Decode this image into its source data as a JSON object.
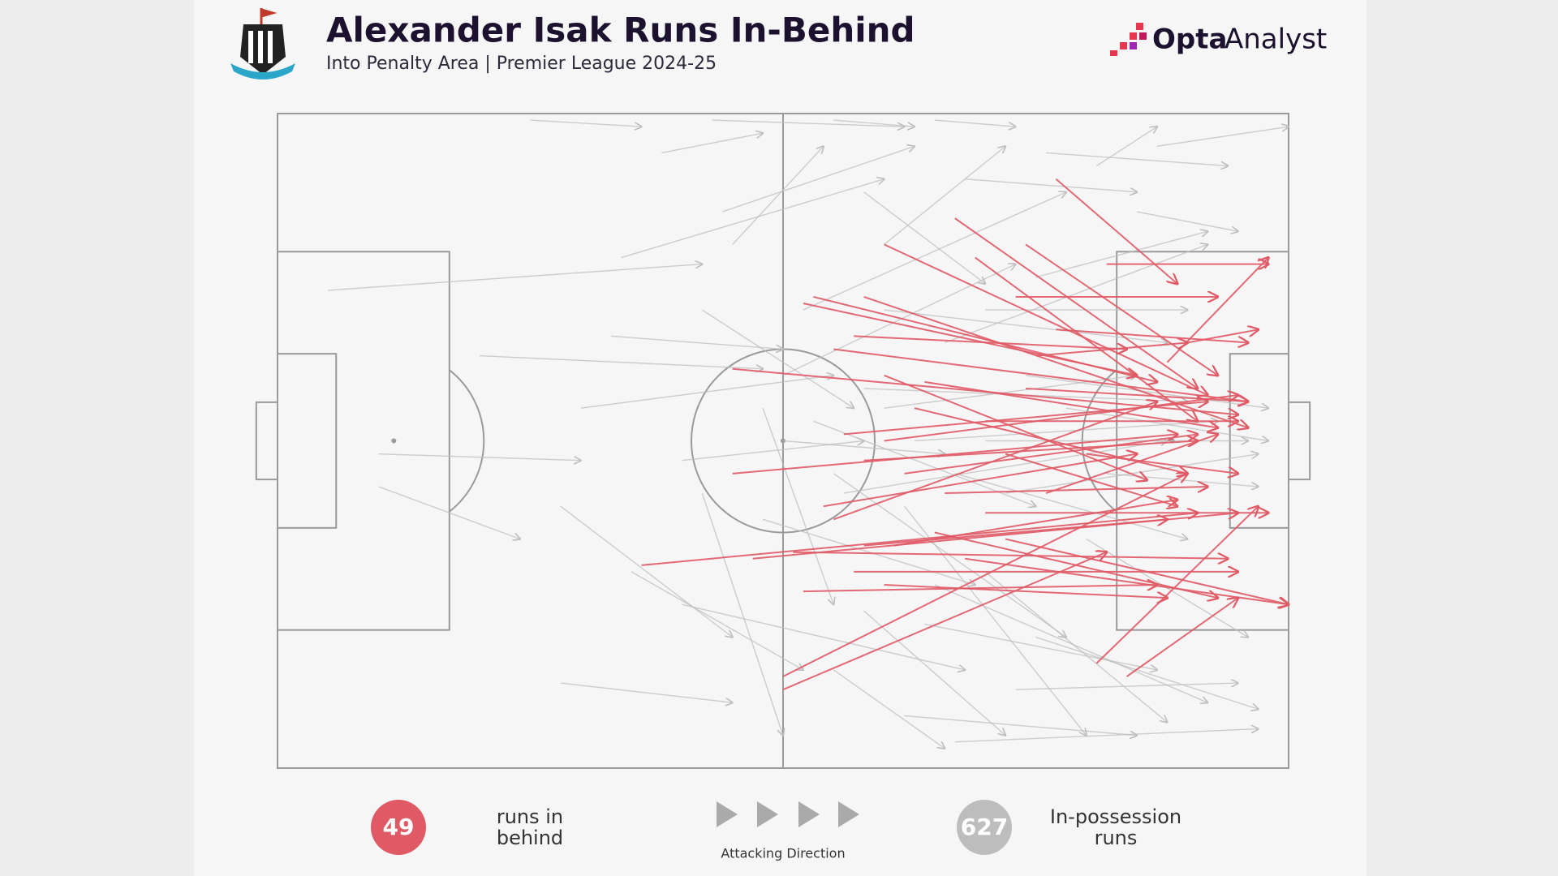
{
  "title": "Alexander Isak Runs In-Behind",
  "subtitle": "Into Penalty Area | Premier League 2024-25",
  "brand_bold": "Opta",
  "brand_light": "Analyst",
  "chart_data": {
    "type": "pitch-arrows",
    "xlim": [
      0,
      100
    ],
    "ylim": [
      0,
      100
    ],
    "direction_label": "Attacking Direction",
    "series": [
      {
        "name": "In-possession runs",
        "count": 627,
        "color": "#bdbdbd",
        "runs": [
          [
            25,
            1,
            36,
            2
          ],
          [
            43,
            1,
            62,
            2
          ],
          [
            55,
            1,
            63,
            2
          ],
          [
            65,
            1,
            73,
            2
          ],
          [
            81,
            8,
            87,
            2
          ],
          [
            87,
            5,
            100,
            2
          ],
          [
            33,
            34,
            50,
            36
          ],
          [
            5,
            27,
            42,
            23
          ],
          [
            10,
            57,
            24,
            65
          ],
          [
            10,
            52,
            30,
            53
          ],
          [
            20,
            37,
            48,
            39
          ],
          [
            30,
            45,
            55,
            40
          ],
          [
            34,
            22,
            60,
            10
          ],
          [
            40,
            53,
            58,
            50
          ],
          [
            28,
            60,
            45,
            80
          ],
          [
            35,
            70,
            52,
            85
          ],
          [
            42,
            58,
            50,
            95
          ],
          [
            48,
            45,
            55,
            75
          ],
          [
            50,
            40,
            73,
            23
          ],
          [
            52,
            30,
            78,
            12
          ],
          [
            60,
            20,
            72,
            5
          ],
          [
            62,
            60,
            80,
            95
          ],
          [
            70,
            70,
            88,
            93
          ],
          [
            75,
            80,
            97,
            91
          ],
          [
            62,
            92,
            85,
            95
          ],
          [
            67,
            96,
            97,
            94
          ],
          [
            28,
            87,
            45,
            90
          ],
          [
            40,
            75,
            68,
            85
          ],
          [
            55,
            55,
            78,
            80
          ],
          [
            60,
            45,
            85,
            40
          ],
          [
            66,
            35,
            92,
            20
          ],
          [
            70,
            50,
            96,
            50
          ],
          [
            72,
            58,
            97,
            52
          ],
          [
            63,
            50,
            93,
            47
          ],
          [
            58,
            42,
            90,
            44
          ],
          [
            56,
            58,
            88,
            50
          ],
          [
            65,
            72,
            92,
            90
          ],
          [
            80,
            65,
            96,
            80
          ],
          [
            75,
            25,
            92,
            18
          ],
          [
            68,
            10,
            85,
            12
          ],
          [
            58,
            12,
            70,
            26
          ],
          [
            45,
            20,
            54,
            5
          ],
          [
            42,
            30,
            57,
            45
          ],
          [
            50,
            50,
            66,
            52
          ],
          [
            74,
            40,
            98,
            45
          ],
          [
            78,
            45,
            98,
            50
          ],
          [
            82,
            55,
            97,
            57
          ],
          [
            70,
            30,
            90,
            30
          ],
          [
            60,
            30,
            88,
            35
          ],
          [
            64,
            78,
            87,
            85
          ],
          [
            55,
            85,
            66,
            97
          ],
          [
            44,
            15,
            63,
            5
          ],
          [
            38,
            6,
            48,
            3
          ],
          [
            76,
            6,
            94,
            8
          ],
          [
            85,
            15,
            95,
            18
          ],
          [
            73,
            88,
            95,
            87
          ],
          [
            58,
            76,
            72,
            95
          ],
          [
            48,
            62,
            69,
            72
          ],
          [
            53,
            47,
            75,
            60
          ],
          [
            67,
            55,
            90,
            65
          ]
        ]
      },
      {
        "name": "runs in behind",
        "count": 49,
        "color": "#e05a66",
        "runs": [
          [
            77,
            10,
            89,
            26
          ],
          [
            67,
            16,
            91,
            42
          ],
          [
            60,
            20,
            92,
            43
          ],
          [
            74,
            20,
            93,
            40
          ],
          [
            58,
            28,
            96,
            48
          ],
          [
            52,
            29,
            85,
            40
          ],
          [
            73,
            28,
            93,
            28
          ],
          [
            55,
            36,
            96,
            44
          ],
          [
            45,
            39,
            95,
            46
          ],
          [
            57,
            34,
            84,
            36
          ],
          [
            53,
            28,
            87,
            41
          ],
          [
            69,
            22,
            91,
            47
          ],
          [
            77,
            33,
            96,
            35
          ],
          [
            90,
            35,
            97,
            33
          ],
          [
            88,
            38,
            98,
            22
          ],
          [
            82,
            23,
            98,
            23
          ],
          [
            75,
            37,
            90,
            35
          ],
          [
            45,
            55,
            89,
            49
          ],
          [
            56,
            49,
            92,
            44
          ],
          [
            60,
            50,
            95,
            43
          ],
          [
            62,
            55,
            91,
            49
          ],
          [
            36,
            69,
            91,
            61
          ],
          [
            47,
            68,
            95,
            61
          ],
          [
            51,
            67,
            94,
            68
          ],
          [
            57,
            70,
            95,
            70
          ],
          [
            52,
            73,
            87,
            72
          ],
          [
            60,
            72,
            88,
            74
          ],
          [
            58,
            66,
            88,
            62
          ],
          [
            65,
            64,
            93,
            74
          ],
          [
            72,
            65,
            100,
            75
          ],
          [
            50,
            86,
            90,
            55
          ],
          [
            50,
            88,
            82,
            67
          ],
          [
            81,
            84,
            97,
            60
          ],
          [
            84,
            86,
            95,
            74
          ],
          [
            70,
            61,
            98,
            61
          ],
          [
            66,
            58,
            92,
            57
          ],
          [
            54,
            60,
            85,
            52
          ],
          [
            58,
            53,
            91,
            50
          ],
          [
            72,
            52,
            89,
            60
          ],
          [
            80,
            52,
            95,
            55
          ],
          [
            63,
            45,
            90,
            55
          ],
          [
            64,
            41,
            93,
            48
          ],
          [
            70,
            47,
            95,
            47
          ],
          [
            60,
            40,
            86,
            56
          ],
          [
            74,
            42,
            96,
            44
          ],
          [
            76,
            58,
            93,
            49
          ],
          [
            61,
            66,
            89,
            59
          ],
          [
            55,
            62,
            87,
            44
          ],
          [
            68,
            68,
            100,
            75
          ]
        ]
      }
    ]
  }
}
